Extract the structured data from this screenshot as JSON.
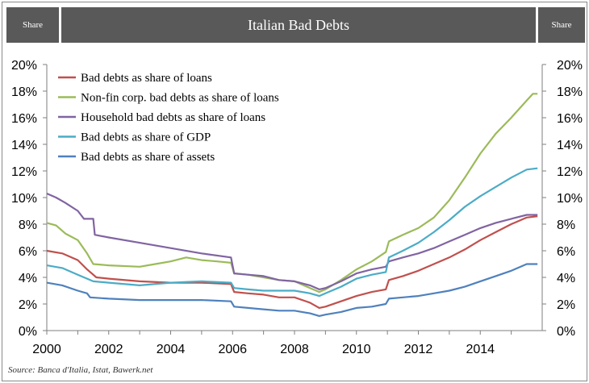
{
  "header": {
    "left_label": "Share",
    "title": "Italian Bad Debts",
    "right_label": "Share"
  },
  "colors": {
    "header_bg": "#595959",
    "axis": "#7f7f7f"
  },
  "source": "Source: Banca d'Italia, Istat, Bawerk.net",
  "chart_data": {
    "type": "line",
    "title": "Italian Bad Debts",
    "xlabel": "",
    "ylabel": "Share",
    "xlim": [
      2000,
      2016
    ],
    "ylim": [
      0,
      20
    ],
    "x_ticks": [
      2000,
      2002,
      2004,
      2006,
      2008,
      2010,
      2012,
      2014
    ],
    "y_ticks": [
      0,
      2,
      4,
      6,
      8,
      10,
      12,
      14,
      16,
      18,
      20
    ],
    "y_tick_labels": [
      "0%",
      "2%",
      "4%",
      "6%",
      "8%",
      "10%",
      "12%",
      "14%",
      "16%",
      "18%",
      "20%"
    ],
    "legend_position": "top-left",
    "series": [
      {
        "name": "Bad debts as share of loans",
        "color": "#c0504d",
        "points": [
          [
            2000,
            6.0
          ],
          [
            2000.5,
            5.8
          ],
          [
            2001,
            5.3
          ],
          [
            2001.3,
            4.6
          ],
          [
            2001.6,
            4.0
          ],
          [
            2002,
            3.9
          ],
          [
            2003,
            3.7
          ],
          [
            2004,
            3.6
          ],
          [
            2005,
            3.6
          ],
          [
            2005.95,
            3.5
          ],
          [
            2006.05,
            2.9
          ],
          [
            2006.5,
            2.8
          ],
          [
            2007,
            2.7
          ],
          [
            2007.5,
            2.5
          ],
          [
            2008,
            2.5
          ],
          [
            2008.5,
            2.1
          ],
          [
            2008.8,
            1.7
          ],
          [
            2009,
            1.8
          ],
          [
            2009.5,
            2.2
          ],
          [
            2010,
            2.6
          ],
          [
            2010.5,
            2.9
          ],
          [
            2010.95,
            3.1
          ],
          [
            2011.05,
            3.8
          ],
          [
            2011.5,
            4.1
          ],
          [
            2012,
            4.5
          ],
          [
            2012.5,
            5.0
          ],
          [
            2013,
            5.5
          ],
          [
            2013.5,
            6.1
          ],
          [
            2014,
            6.8
          ],
          [
            2014.5,
            7.4
          ],
          [
            2015,
            8.0
          ],
          [
            2015.5,
            8.5
          ],
          [
            2015.85,
            8.6
          ]
        ]
      },
      {
        "name": "Non-fin corp. bad debts as share of loans",
        "color": "#9bbb59",
        "points": [
          [
            2000,
            8.1
          ],
          [
            2000.3,
            7.9
          ],
          [
            2000.6,
            7.3
          ],
          [
            2001,
            6.8
          ],
          [
            2001.3,
            5.8
          ],
          [
            2001.5,
            5.0
          ],
          [
            2002,
            4.9
          ],
          [
            2003,
            4.8
          ],
          [
            2003.5,
            5.0
          ],
          [
            2004,
            5.2
          ],
          [
            2004.5,
            5.5
          ],
          [
            2005,
            5.3
          ],
          [
            2005.5,
            5.2
          ],
          [
            2005.95,
            5.1
          ],
          [
            2006.05,
            4.3
          ],
          [
            2006.5,
            4.2
          ],
          [
            2007,
            4.0
          ],
          [
            2007.5,
            3.8
          ],
          [
            2008,
            3.7
          ],
          [
            2008.5,
            3.2
          ],
          [
            2008.8,
            2.9
          ],
          [
            2009,
            3.1
          ],
          [
            2009.5,
            3.8
          ],
          [
            2010,
            4.6
          ],
          [
            2010.5,
            5.2
          ],
          [
            2010.95,
            5.9
          ],
          [
            2011.05,
            6.7
          ],
          [
            2011.5,
            7.2
          ],
          [
            2012,
            7.7
          ],
          [
            2012.5,
            8.5
          ],
          [
            2013,
            9.8
          ],
          [
            2013.5,
            11.5
          ],
          [
            2014,
            13.3
          ],
          [
            2014.5,
            14.8
          ],
          [
            2015,
            16.0
          ],
          [
            2015.5,
            17.3
          ],
          [
            2015.7,
            17.8
          ],
          [
            2015.85,
            17.8
          ]
        ]
      },
      {
        "name": "Household bad debts as share of loans",
        "color": "#8064a2",
        "points": [
          [
            2000,
            10.3
          ],
          [
            2000.3,
            10.0
          ],
          [
            2000.6,
            9.6
          ],
          [
            2001,
            9.0
          ],
          [
            2001.2,
            8.4
          ],
          [
            2001.5,
            8.4
          ],
          [
            2001.55,
            7.2
          ],
          [
            2002,
            7.0
          ],
          [
            2003,
            6.6
          ],
          [
            2004,
            6.2
          ],
          [
            2005,
            5.8
          ],
          [
            2005.95,
            5.5
          ],
          [
            2006.05,
            4.3
          ],
          [
            2006.5,
            4.2
          ],
          [
            2007,
            4.1
          ],
          [
            2007.5,
            3.8
          ],
          [
            2008,
            3.7
          ],
          [
            2008.5,
            3.4
          ],
          [
            2008.8,
            3.1
          ],
          [
            2009,
            3.2
          ],
          [
            2009.5,
            3.7
          ],
          [
            2010,
            4.3
          ],
          [
            2010.5,
            4.6
          ],
          [
            2010.95,
            4.8
          ],
          [
            2011.05,
            5.2
          ],
          [
            2011.5,
            5.5
          ],
          [
            2012,
            5.8
          ],
          [
            2012.5,
            6.2
          ],
          [
            2013,
            6.7
          ],
          [
            2013.5,
            7.2
          ],
          [
            2014,
            7.7
          ],
          [
            2014.5,
            8.1
          ],
          [
            2015,
            8.4
          ],
          [
            2015.5,
            8.7
          ],
          [
            2015.85,
            8.7
          ]
        ]
      },
      {
        "name": "Bad debts as share of GDP",
        "color": "#4bacc6",
        "points": [
          [
            2000,
            4.9
          ],
          [
            2000.5,
            4.7
          ],
          [
            2001,
            4.2
          ],
          [
            2001.5,
            3.7
          ],
          [
            2002,
            3.6
          ],
          [
            2003,
            3.4
          ],
          [
            2004,
            3.6
          ],
          [
            2005,
            3.7
          ],
          [
            2005.95,
            3.6
          ],
          [
            2006.05,
            3.2
          ],
          [
            2006.5,
            3.1
          ],
          [
            2007,
            3.0
          ],
          [
            2007.5,
            3.0
          ],
          [
            2008,
            3.0
          ],
          [
            2008.5,
            2.8
          ],
          [
            2008.8,
            2.6
          ],
          [
            2009,
            2.8
          ],
          [
            2009.5,
            3.3
          ],
          [
            2010,
            3.9
          ],
          [
            2010.5,
            4.2
          ],
          [
            2010.95,
            4.4
          ],
          [
            2011.05,
            5.5
          ],
          [
            2011.5,
            6.0
          ],
          [
            2012,
            6.6
          ],
          [
            2012.5,
            7.4
          ],
          [
            2013,
            8.3
          ],
          [
            2013.5,
            9.3
          ],
          [
            2014,
            10.1
          ],
          [
            2014.5,
            10.8
          ],
          [
            2015,
            11.5
          ],
          [
            2015.5,
            12.1
          ],
          [
            2015.85,
            12.2
          ]
        ]
      },
      {
        "name": "Bad debts as share of assets",
        "color": "#4f81bd",
        "points": [
          [
            2000,
            3.6
          ],
          [
            2000.5,
            3.4
          ],
          [
            2001,
            3.0
          ],
          [
            2001.3,
            2.8
          ],
          [
            2001.4,
            2.5
          ],
          [
            2002,
            2.4
          ],
          [
            2003,
            2.3
          ],
          [
            2004,
            2.3
          ],
          [
            2005,
            2.3
          ],
          [
            2005.95,
            2.2
          ],
          [
            2006.05,
            1.8
          ],
          [
            2006.5,
            1.7
          ],
          [
            2007,
            1.6
          ],
          [
            2007.5,
            1.5
          ],
          [
            2008,
            1.5
          ],
          [
            2008.5,
            1.3
          ],
          [
            2008.8,
            1.1
          ],
          [
            2009,
            1.2
          ],
          [
            2009.5,
            1.4
          ],
          [
            2010,
            1.7
          ],
          [
            2010.5,
            1.8
          ],
          [
            2010.95,
            2.0
          ],
          [
            2011.05,
            2.4
          ],
          [
            2011.5,
            2.5
          ],
          [
            2012,
            2.6
          ],
          [
            2012.5,
            2.8
          ],
          [
            2013,
            3.0
          ],
          [
            2013.5,
            3.3
          ],
          [
            2014,
            3.7
          ],
          [
            2014.5,
            4.1
          ],
          [
            2015,
            4.5
          ],
          [
            2015.5,
            5.0
          ],
          [
            2015.85,
            5.0
          ]
        ]
      }
    ]
  }
}
